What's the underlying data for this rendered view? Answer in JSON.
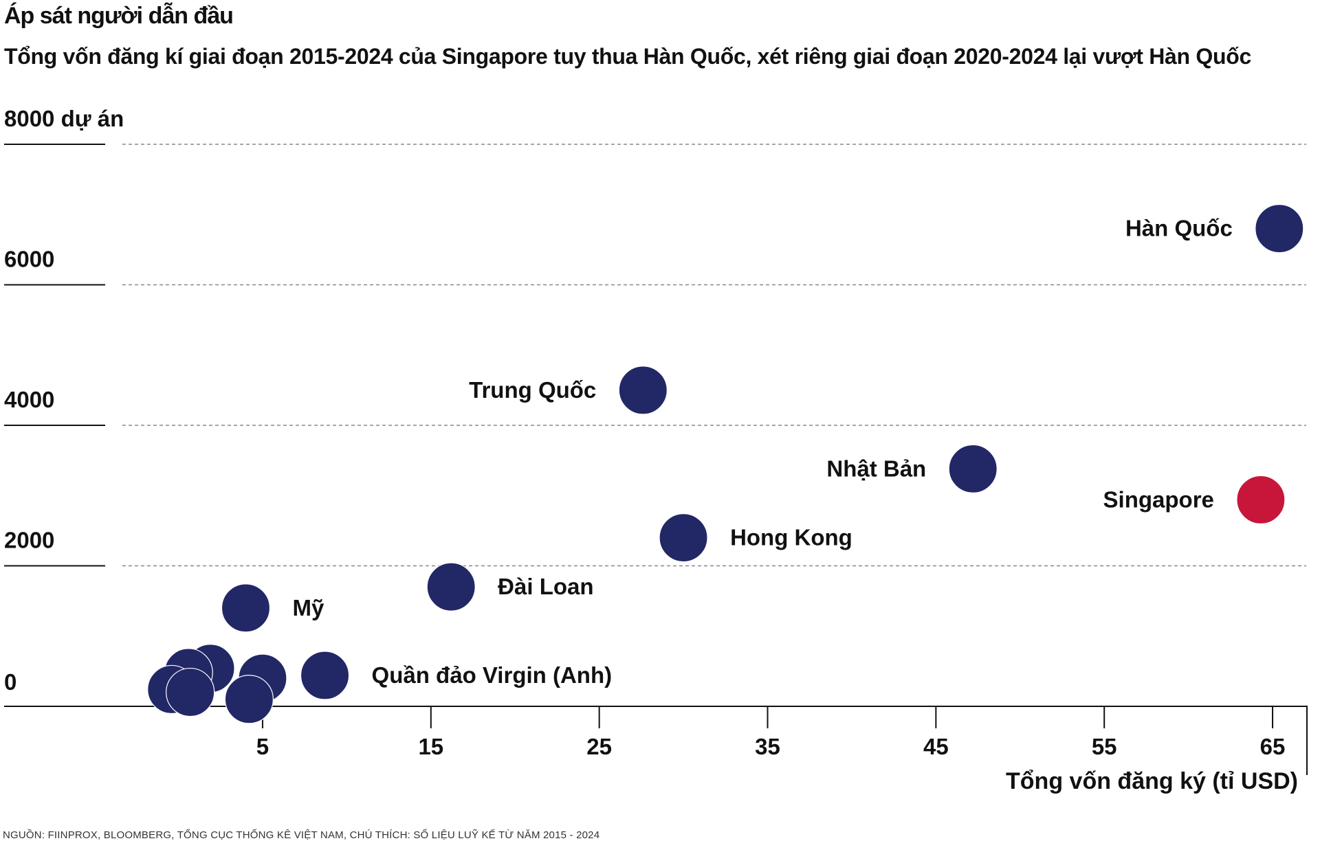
{
  "title": "Áp sát người dẫn đầu",
  "subtitle": "Tổng vốn đăng kí giai đoạn 2015-2024 của Singapore tuy thua Hàn Quốc, xét riêng giai đoạn 2020-2024 lại vượt Hàn Quốc",
  "source": "NGUỒN: FIINPROX, BLOOMBERG, TỔNG CỤC THỐNG KÊ VIỆT NAM, CHÚ THÍCH: SỐ LIỆU LUỸ KẾ TỪ NĂM 2015 - 2024",
  "colors": {
    "default_point": "#222766",
    "highlight_point": "#C8163B",
    "gridline": "#888888",
    "axis": "#111111"
  },
  "chart_data": {
    "type": "scatter",
    "title": "Áp sát người dẫn đầu",
    "xlabel": "Tổng vốn đăng ký (tỉ USD)",
    "ylabel": "dự án",
    "xlim": [
      -10.6,
      67
    ],
    "ylim": [
      0,
      8000
    ],
    "x_ticks": [
      5,
      15,
      25,
      35,
      45,
      55,
      65
    ],
    "y_ticks": [
      0,
      2000,
      4000,
      6000,
      8000
    ],
    "y_tick_labels": [
      "0",
      "2000",
      "4000",
      "6000",
      "8000 dự án"
    ],
    "grid": "horizontal-dashed",
    "points": [
      {
        "label": "Hàn Quốc",
        "x": 65.4,
        "y": 6800,
        "highlight": false,
        "label_side": "left"
      },
      {
        "label": "Trung Quốc",
        "x": 27.6,
        "y": 4500,
        "highlight": false,
        "label_side": "left"
      },
      {
        "label": "Nhật Bản",
        "x": 47.2,
        "y": 3380,
        "highlight": false,
        "label_side": "left"
      },
      {
        "label": "Singapore",
        "x": 64.3,
        "y": 2940,
        "highlight": true,
        "label_side": "left"
      },
      {
        "label": "Hong Kong",
        "x": 30.0,
        "y": 2400,
        "highlight": false,
        "label_side": "right"
      },
      {
        "label": "Đài Loan",
        "x": 16.2,
        "y": 1700,
        "highlight": false,
        "label_side": "right"
      },
      {
        "label": "Mỹ",
        "x": 4.0,
        "y": 1400,
        "highlight": false,
        "label_side": "right"
      },
      {
        "label": "Quần đảo Virgin (Anh)",
        "x": 8.7,
        "y": 440,
        "highlight": false,
        "label_side": "right"
      },
      {
        "label": "",
        "x": 1.9,
        "y": 540,
        "highlight": false
      },
      {
        "label": "",
        "x": 0.6,
        "y": 480,
        "highlight": false
      },
      {
        "label": "",
        "x": -0.4,
        "y": 240,
        "highlight": false
      },
      {
        "label": "",
        "x": 0.7,
        "y": 200,
        "highlight": false
      },
      {
        "label": "",
        "x": 5.0,
        "y": 400,
        "highlight": false
      },
      {
        "label": "",
        "x": 4.2,
        "y": 100,
        "highlight": false
      }
    ]
  }
}
